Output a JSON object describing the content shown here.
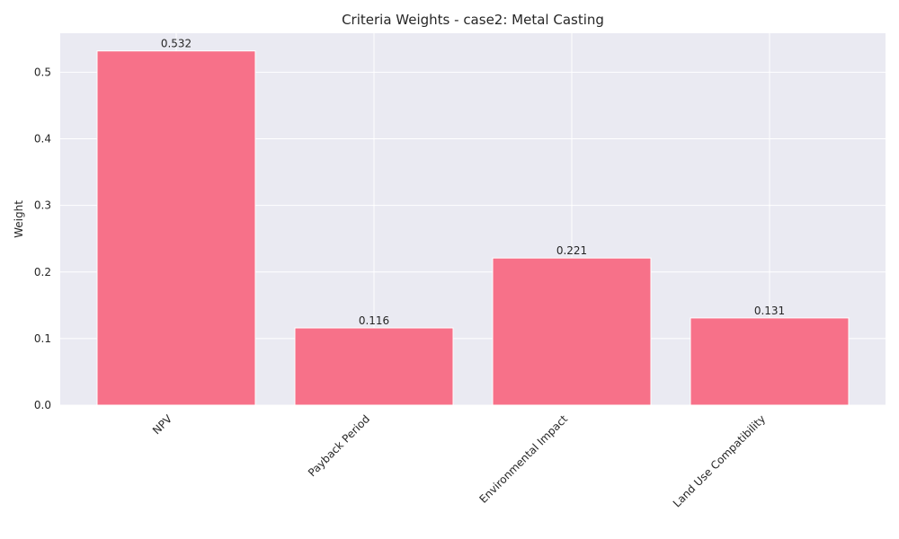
{
  "chart_data": {
    "type": "bar",
    "title": "Criteria Weights - case2: Metal Casting",
    "xlabel": "",
    "ylabel": "Weight",
    "categories": [
      "NPV",
      "Payback Period",
      "Environmental Impact",
      "Land Use Compatibility"
    ],
    "values": [
      0.532,
      0.116,
      0.221,
      0.131
    ],
    "value_labels": [
      "0.532",
      "0.116",
      "0.221",
      "0.131"
    ],
    "ylim": [
      0,
      0.5586
    ],
    "yticks": [
      0.0,
      0.1,
      0.2,
      0.3,
      0.4,
      0.5
    ],
    "ytick_labels": [
      "0.0",
      "0.1",
      "0.2",
      "0.3",
      "0.4",
      "0.5"
    ],
    "grid": true,
    "legend": "none",
    "colors": {
      "bar": "#f77189",
      "plot_background": "#eaeaf2",
      "grid": "#ffffff",
      "text": "#262626"
    }
  }
}
